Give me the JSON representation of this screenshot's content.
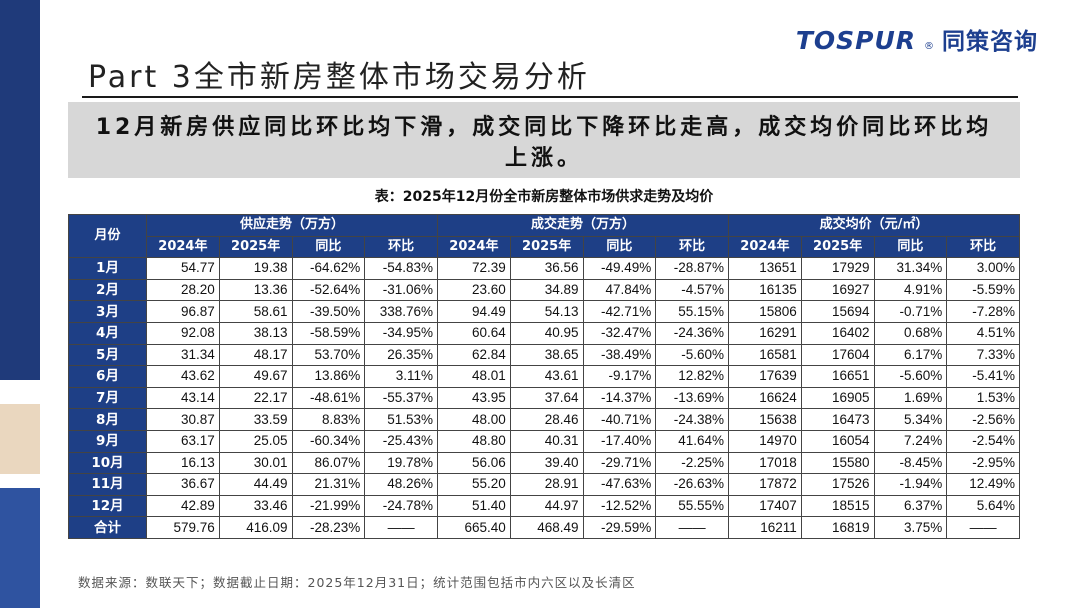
{
  "logo": {
    "en": "TOSPUR",
    "reg": "®",
    "cn": "同策咨询"
  },
  "page_title": "Part 3全市新房整体市场交易分析",
  "headline": "12月新房供应同比环比均下滑，成交同比下降环比走高，成交均价同比环比均上涨。",
  "table_caption": "表：2025年12月份全市新房整体市场供求走势及均价",
  "table": {
    "month_header": "月份",
    "groups": [
      "供应走势（万方）",
      "成交走势（万方）",
      "成交均价（元/㎡）"
    ],
    "subheaders": [
      "2024年",
      "2025年",
      "同比",
      "环比"
    ],
    "rows": [
      {
        "label": "1月",
        "cells": [
          "54.77",
          "19.38",
          "-64.62%",
          "-54.83%",
          "72.39",
          "36.56",
          "-49.49%",
          "-28.87%",
          "13651",
          "17929",
          "31.34%",
          "3.00%"
        ]
      },
      {
        "label": "2月",
        "cells": [
          "28.20",
          "13.36",
          "-52.64%",
          "-31.06%",
          "23.60",
          "34.89",
          "47.84%",
          "-4.57%",
          "16135",
          "16927",
          "4.91%",
          "-5.59%"
        ]
      },
      {
        "label": "3月",
        "cells": [
          "96.87",
          "58.61",
          "-39.50%",
          "338.76%",
          "94.49",
          "54.13",
          "-42.71%",
          "55.15%",
          "15806",
          "15694",
          "-0.71%",
          "-7.28%"
        ]
      },
      {
        "label": "4月",
        "cells": [
          "92.08",
          "38.13",
          "-58.59%",
          "-34.95%",
          "60.64",
          "40.95",
          "-32.47%",
          "-24.36%",
          "16291",
          "16402",
          "0.68%",
          "4.51%"
        ]
      },
      {
        "label": "5月",
        "cells": [
          "31.34",
          "48.17",
          "53.70%",
          "26.35%",
          "62.84",
          "38.65",
          "-38.49%",
          "-5.60%",
          "16581",
          "17604",
          "6.17%",
          "7.33%"
        ]
      },
      {
        "label": "6月",
        "cells": [
          "43.62",
          "49.67",
          "13.86%",
          "3.11%",
          "48.01",
          "43.61",
          "-9.17%",
          "12.82%",
          "17639",
          "16651",
          "-5.60%",
          "-5.41%"
        ]
      },
      {
        "label": "7月",
        "cells": [
          "43.14",
          "22.17",
          "-48.61%",
          "-55.37%",
          "43.95",
          "37.64",
          "-14.37%",
          "-13.69%",
          "16624",
          "16905",
          "1.69%",
          "1.53%"
        ]
      },
      {
        "label": "8月",
        "cells": [
          "30.87",
          "33.59",
          "8.83%",
          "51.53%",
          "48.00",
          "28.46",
          "-40.71%",
          "-24.38%",
          "15638",
          "16473",
          "5.34%",
          "-2.56%"
        ]
      },
      {
        "label": "9月",
        "cells": [
          "63.17",
          "25.05",
          "-60.34%",
          "-25.43%",
          "48.80",
          "40.31",
          "-17.40%",
          "41.64%",
          "14970",
          "16054",
          "7.24%",
          "-2.54%"
        ]
      },
      {
        "label": "10月",
        "cells": [
          "16.13",
          "30.01",
          "86.07%",
          "19.78%",
          "56.06",
          "39.40",
          "-29.71%",
          "-2.25%",
          "17018",
          "15580",
          "-8.45%",
          "-2.95%"
        ]
      },
      {
        "label": "11月",
        "cells": [
          "36.67",
          "44.49",
          "21.31%",
          "48.26%",
          "55.20",
          "28.91",
          "-47.63%",
          "-26.63%",
          "17872",
          "17526",
          "-1.94%",
          "12.49%"
        ]
      },
      {
        "label": "12月",
        "cells": [
          "42.89",
          "33.46",
          "-21.99%",
          "-24.78%",
          "51.40",
          "44.97",
          "-12.52%",
          "55.55%",
          "17407",
          "18515",
          "6.37%",
          "5.64%"
        ]
      },
      {
        "label": "合计",
        "cells": [
          "579.76",
          "416.09",
          "-28.23%",
          "——",
          "665.40",
          "468.49",
          "-29.59%",
          "——",
          "16211",
          "16819",
          "3.75%",
          "——"
        ]
      }
    ]
  },
  "source_note": "数据来源：数联天下；数据截止日期：2025年12月31日；统计范围包括市内六区以及长清区",
  "colors": {
    "header_blue": "#1e3f86",
    "sidebar_blue": "#1f3a7a",
    "accent_beige": "#ead7bf",
    "headline_gray": "#d7d7d7"
  }
}
